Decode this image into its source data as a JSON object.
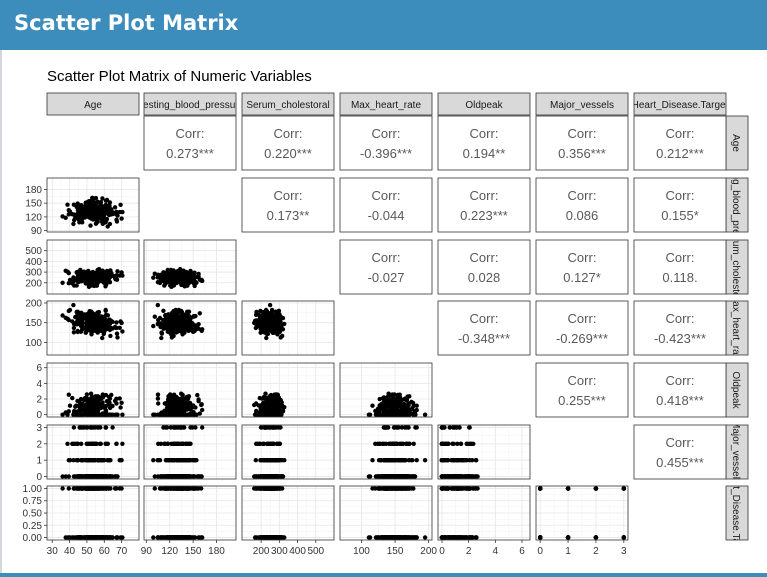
{
  "app": {
    "title": "Scatter Plot Matrix"
  },
  "chart_data": {
    "type": "scatter",
    "title": "Scatter Plot Matrix of Numeric Variables",
    "variables": [
      {
        "strip_top": "Age",
        "strip_right": "Age",
        "range": [
          27,
          80
        ],
        "ticks": [
          30,
          40,
          50,
          60,
          70
        ],
        "tick_labels": [
          "30",
          "40",
          "50",
          "60",
          "70"
        ]
      },
      {
        "strip_top": "Resting_blood_pressure",
        "strip_right": "Resting_blood_pressure",
        "range": [
          87,
          205
        ],
        "ticks": [
          90,
          120,
          150,
          180
        ],
        "tick_labels": [
          "90",
          "120",
          "150",
          "180"
        ]
      },
      {
        "strip_top": "Serum_cholestoral",
        "strip_right": "Serum_cholestoral",
        "range": [
          95,
          600
        ],
        "ticks": [
          200,
          300,
          400,
          500
        ],
        "tick_labels": [
          "200",
          "300",
          "400",
          "500"
        ]
      },
      {
        "strip_top": "Max_heart_rate",
        "strip_right": "Max_heart_rate",
        "range": [
          68,
          205
        ],
        "ticks": [
          100,
          150,
          200
        ],
        "tick_labels": [
          "100",
          "150",
          "200"
        ]
      },
      {
        "strip_top": "Oldpeak",
        "strip_right": "Oldpeak",
        "range": [
          -0.3,
          6.6
        ],
        "ticks": [
          0,
          2,
          4,
          6
        ],
        "tick_labels": [
          "0",
          "2",
          "4",
          "6"
        ]
      },
      {
        "strip_top": "Major_vessels",
        "strip_right": "Major_vessels",
        "range": [
          -0.15,
          3.15
        ],
        "ticks": [
          0,
          1,
          2,
          3
        ],
        "tick_labels": [
          "0",
          "1",
          "2",
          "3"
        ]
      },
      {
        "strip_top": "Heart_Disease.Target",
        "strip_right": "Heart_Disease.Target",
        "range": [
          -0.05,
          1.05
        ],
        "ticks": [
          0,
          0.25,
          0.5,
          0.75,
          1
        ],
        "tick_labels": [
          "0.00",
          "0.25",
          "0.50",
          "0.75",
          "1.00"
        ]
      }
    ],
    "corr_label": "Corr:",
    "correlations": [
      {
        "row": 0,
        "col": 1,
        "value": "0.273***"
      },
      {
        "row": 0,
        "col": 2,
        "value": "0.220***"
      },
      {
        "row": 0,
        "col": 3,
        "value": "-0.396***"
      },
      {
        "row": 0,
        "col": 4,
        "value": "0.194**"
      },
      {
        "row": 0,
        "col": 5,
        "value": "0.356***"
      },
      {
        "row": 0,
        "col": 6,
        "value": "0.212***"
      },
      {
        "row": 1,
        "col": 2,
        "value": "0.173**"
      },
      {
        "row": 1,
        "col": 3,
        "value": "-0.044"
      },
      {
        "row": 1,
        "col": 4,
        "value": "0.223***"
      },
      {
        "row": 1,
        "col": 5,
        "value": "0.086"
      },
      {
        "row": 1,
        "col": 6,
        "value": "0.155*"
      },
      {
        "row": 2,
        "col": 3,
        "value": "-0.027"
      },
      {
        "row": 2,
        "col": 4,
        "value": "0.028"
      },
      {
        "row": 2,
        "col": 5,
        "value": "0.127*"
      },
      {
        "row": 2,
        "col": 6,
        "value": "0.118."
      },
      {
        "row": 3,
        "col": 4,
        "value": "-0.348***"
      },
      {
        "row": 3,
        "col": 5,
        "value": "-0.269***"
      },
      {
        "row": 3,
        "col": 6,
        "value": "-0.423***"
      },
      {
        "row": 4,
        "col": 5,
        "value": "0.255***"
      },
      {
        "row": 4,
        "col": 6,
        "value": "0.418***"
      },
      {
        "row": 5,
        "col": 6,
        "value": "0.455***"
      }
    ],
    "point_color": "#000000",
    "grid": true,
    "panel_background": "#ffffff",
    "strip_background": "#d9d9d9",
    "n_points": 270
  }
}
